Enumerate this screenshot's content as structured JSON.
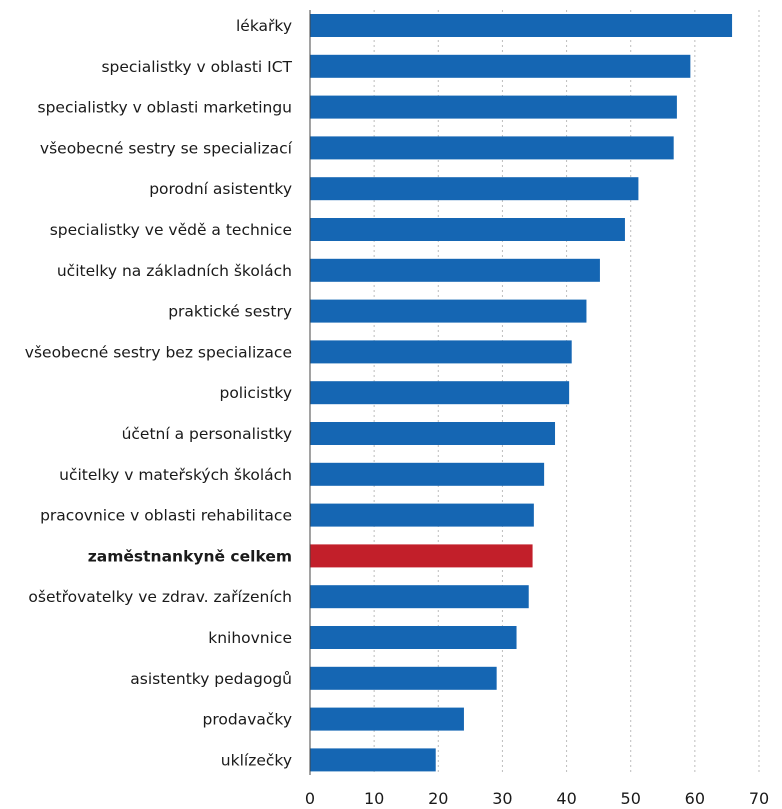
{
  "chart_data": {
    "type": "bar",
    "orientation": "horizontal",
    "categories": [
      "lékařky",
      "specialistky v oblasti ICT",
      "specialistky v oblasti marketingu",
      "všeobecné sestry se specializací",
      "porodní asistentky",
      "specialistky ve vědě a technice",
      "učitelky na základních školách",
      "praktické sestry",
      "všeobecné sestry bez specializace",
      "policistky",
      "účetní a personalistky",
      "učitelky v mateřských školách",
      "pracovnice v oblasti rehabilitace",
      "zaměstnankyně celkem",
      "ošetřovatelky ve zdrav. zařízeních",
      "knihovnice",
      "asistentky pedagogů",
      "prodavačky",
      "uklízečky"
    ],
    "values": [
      65.8,
      59.3,
      57.2,
      56.7,
      51.2,
      49.1,
      45.2,
      43.1,
      40.8,
      40.4,
      38.2,
      36.5,
      34.9,
      34.7,
      34.1,
      32.2,
      29.1,
      24.0,
      19.6
    ],
    "highlight_category": "zaměstnankyně celkem",
    "colors": {
      "bar": "#1566b3",
      "highlight": "#c21f2a"
    },
    "x_ticks": [
      "0",
      "10",
      "20",
      "30",
      "40",
      "50",
      "60",
      "70"
    ],
    "xlim": [
      0,
      70
    ],
    "grid": true,
    "title": "",
    "xlabel": "",
    "ylabel": ""
  }
}
